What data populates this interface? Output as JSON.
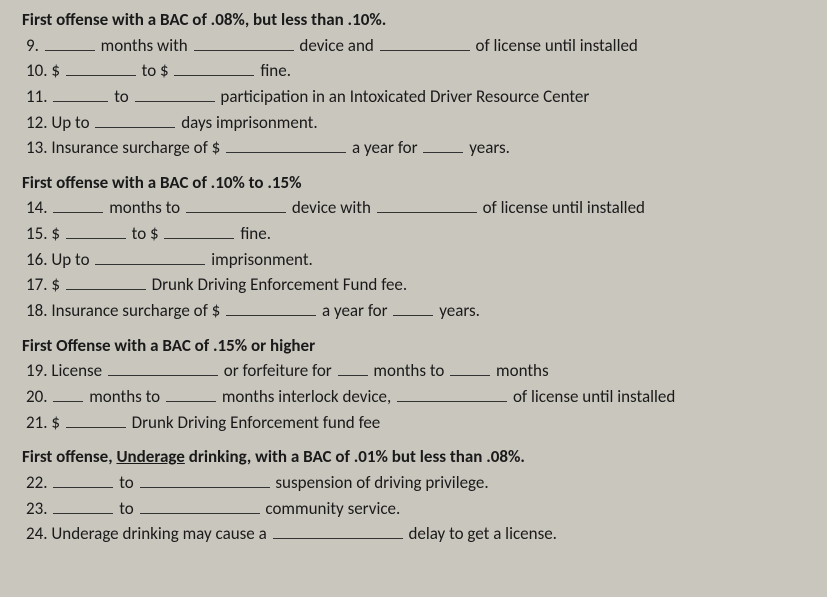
{
  "style": {
    "background_color": "#c8c6bd",
    "text_color": "#1a1a1a",
    "font_family": "Calibri, Arial, sans-serif",
    "font_size_pt": 13,
    "line_height": 1.45,
    "blank_border_color": "#333333"
  },
  "s1": {
    "heading": "First offense with a BAC of .08%, but less than .10%.",
    "l9a": "9.",
    "l9b": "months with",
    "l9c": "device and",
    "l9d": "of license until installed",
    "l10a": "10. $",
    "l10b": "to $",
    "l10c": "fine.",
    "l11a": "11.",
    "l11b": "to",
    "l11c": "participation in an Intoxicated Driver Resource Center",
    "l12a": "12. Up to",
    "l12b": "days imprisonment.",
    "l13a": "13. Insurance surcharge of $",
    "l13b": "a year for",
    "l13c": "years."
  },
  "s2": {
    "heading": "First offense with a BAC of .10% to .15%",
    "l14a": "14.",
    "l14b": "months to",
    "l14c": "device with",
    "l14d": "of license until installed",
    "l15a": "15. $",
    "l15b": "to $",
    "l15c": "fine.",
    "l16a": "16. Up to",
    "l16b": "imprisonment.",
    "l17a": "17. $",
    "l17b": "Drunk Driving Enforcement Fund fee.",
    "l18a": "18. Insurance surcharge of $",
    "l18b": "a year for",
    "l18c": "years."
  },
  "s3": {
    "heading": "First Offense with a BAC of .15% or higher",
    "l19a": "19. License",
    "l19b": "or forfeiture for",
    "l19c": "months to",
    "l19d": "months",
    "l20a": "20.",
    "l20b": "months to",
    "l20c": "months interlock device,",
    "l20d": "of license until installed",
    "l21a": "21. $",
    "l21b": "Drunk Driving Enforcement fund fee"
  },
  "s4": {
    "heading_a": "First offense, ",
    "heading_u": "Underage",
    "heading_b": " drinking, with a BAC of .01% but less than .08%.",
    "l22a": "22.",
    "l22b": "to",
    "l22c": "suspension of driving privilege.",
    "l23a": "23.",
    "l23b": "to",
    "l23c": "community service.",
    "l24a": "24. Underage drinking may cause a",
    "l24b": "delay to get a license."
  }
}
